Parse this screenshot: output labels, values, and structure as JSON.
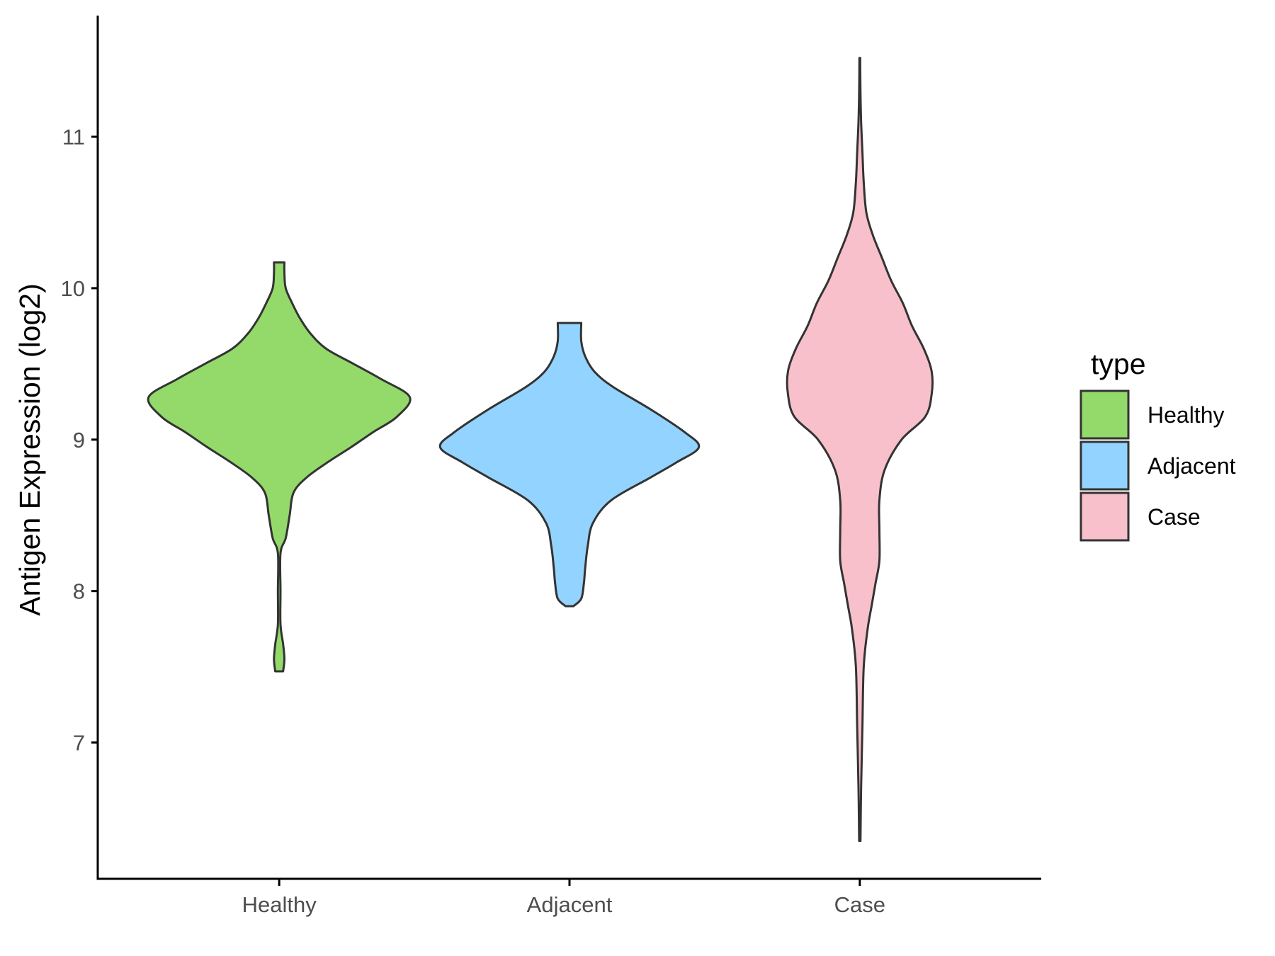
{
  "chart_data": {
    "type": "violin",
    "title": "",
    "xlabel": "",
    "ylabel": "Antigen Expression (log2)",
    "ylim": [
      6.1,
      11.8
    ],
    "yticks": [
      7,
      8,
      9,
      10,
      11
    ],
    "grid": false,
    "legend": {
      "title": "type",
      "position": "right",
      "entries": [
        "Healthy",
        "Adjacent",
        "Case"
      ]
    },
    "categories": [
      "Healthy",
      "Adjacent",
      "Case"
    ],
    "series": [
      {
        "name": "Healthy",
        "color": "#93da6a",
        "min": 7.47,
        "max": 10.17,
        "density": [
          [
            7.47,
            0.03
          ],
          [
            7.55,
            0.04
          ],
          [
            7.65,
            0.03
          ],
          [
            7.78,
            0.01
          ],
          [
            8.0,
            0.01
          ],
          [
            8.25,
            0.01
          ],
          [
            8.35,
            0.05
          ],
          [
            8.5,
            0.08
          ],
          [
            8.65,
            0.11
          ],
          [
            8.75,
            0.21
          ],
          [
            8.85,
            0.37
          ],
          [
            8.95,
            0.55
          ],
          [
            9.05,
            0.72
          ],
          [
            9.15,
            0.9
          ],
          [
            9.28,
            1.0
          ],
          [
            9.4,
            0.78
          ],
          [
            9.5,
            0.57
          ],
          [
            9.6,
            0.36
          ],
          [
            9.7,
            0.24
          ],
          [
            9.8,
            0.16
          ],
          [
            9.9,
            0.1
          ],
          [
            10.0,
            0.05
          ],
          [
            10.1,
            0.04
          ],
          [
            10.17,
            0.04
          ]
        ]
      },
      {
        "name": "Adjacent",
        "color": "#93d3ff",
        "min": 7.9,
        "max": 9.77,
        "density": [
          [
            7.9,
            0.03
          ],
          [
            7.95,
            0.09
          ],
          [
            8.05,
            0.11
          ],
          [
            8.15,
            0.12
          ],
          [
            8.3,
            0.14
          ],
          [
            8.45,
            0.18
          ],
          [
            8.6,
            0.32
          ],
          [
            8.75,
            0.62
          ],
          [
            8.85,
            0.82
          ],
          [
            8.95,
            0.99
          ],
          [
            9.05,
            0.88
          ],
          [
            9.2,
            0.62
          ],
          [
            9.35,
            0.33
          ],
          [
            9.45,
            0.19
          ],
          [
            9.55,
            0.12
          ],
          [
            9.65,
            0.09
          ],
          [
            9.77,
            0.09
          ]
        ]
      },
      {
        "name": "Case",
        "color": "#f7c0cb",
        "min": 6.35,
        "max": 11.52,
        "density": [
          [
            6.35,
            0.005
          ],
          [
            6.7,
            0.01
          ],
          [
            7.1,
            0.02
          ],
          [
            7.5,
            0.03
          ],
          [
            7.75,
            0.06
          ],
          [
            7.9,
            0.09
          ],
          [
            8.05,
            0.12
          ],
          [
            8.2,
            0.15
          ],
          [
            8.4,
            0.15
          ],
          [
            8.6,
            0.15
          ],
          [
            8.8,
            0.19
          ],
          [
            9.0,
            0.32
          ],
          [
            9.15,
            0.5
          ],
          [
            9.3,
            0.55
          ],
          [
            9.45,
            0.55
          ],
          [
            9.6,
            0.49
          ],
          [
            9.75,
            0.4
          ],
          [
            9.9,
            0.33
          ],
          [
            10.05,
            0.24
          ],
          [
            10.2,
            0.17
          ],
          [
            10.35,
            0.1
          ],
          [
            10.5,
            0.05
          ],
          [
            10.7,
            0.03
          ],
          [
            10.9,
            0.02
          ],
          [
            11.1,
            0.01
          ],
          [
            11.3,
            0.005
          ],
          [
            11.52,
            0.003
          ]
        ]
      }
    ]
  }
}
